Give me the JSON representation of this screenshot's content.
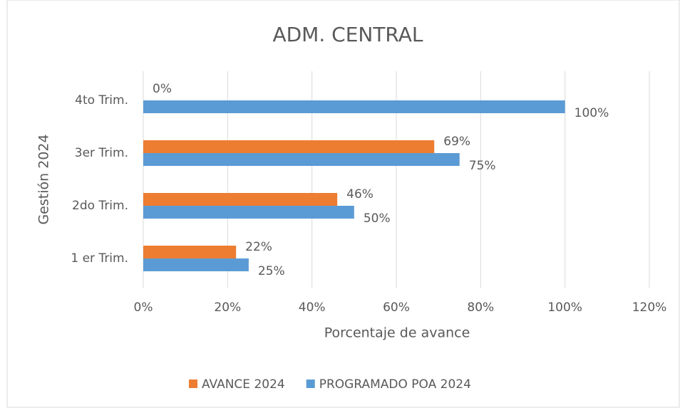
{
  "chart_data": {
    "type": "hbar",
    "title": "ADM. CENTRAL",
    "xlabel": "Porcentaje de avance",
    "ylabel": "Gestión 2024",
    "categories": [
      "1 er Trim.",
      "2do Trim.",
      "3er Trim.",
      "4to Trim."
    ],
    "series": [
      {
        "name": "AVANCE 2024",
        "color": "#ed7d31",
        "values": [
          22,
          46,
          69,
          0
        ],
        "value_labels": [
          "22%",
          "46%",
          "69%",
          "0%"
        ]
      },
      {
        "name": "PROGRAMADO POA 2024",
        "color": "#5b9bd5",
        "values": [
          25,
          50,
          75,
          100
        ],
        "value_labels": [
          "25%",
          "50%",
          "75%",
          "100%"
        ]
      }
    ],
    "xlim": [
      0,
      120
    ],
    "xticks": [
      {
        "value": 0,
        "label": "0%"
      },
      {
        "value": 20,
        "label": "20%"
      },
      {
        "value": 40,
        "label": "40%"
      },
      {
        "value": 60,
        "label": "60%"
      },
      {
        "value": 80,
        "label": "80%"
      },
      {
        "value": 100,
        "label": "100%"
      },
      {
        "value": 120,
        "label": "120%"
      }
    ],
    "grid": true,
    "legend": "bottom"
  }
}
